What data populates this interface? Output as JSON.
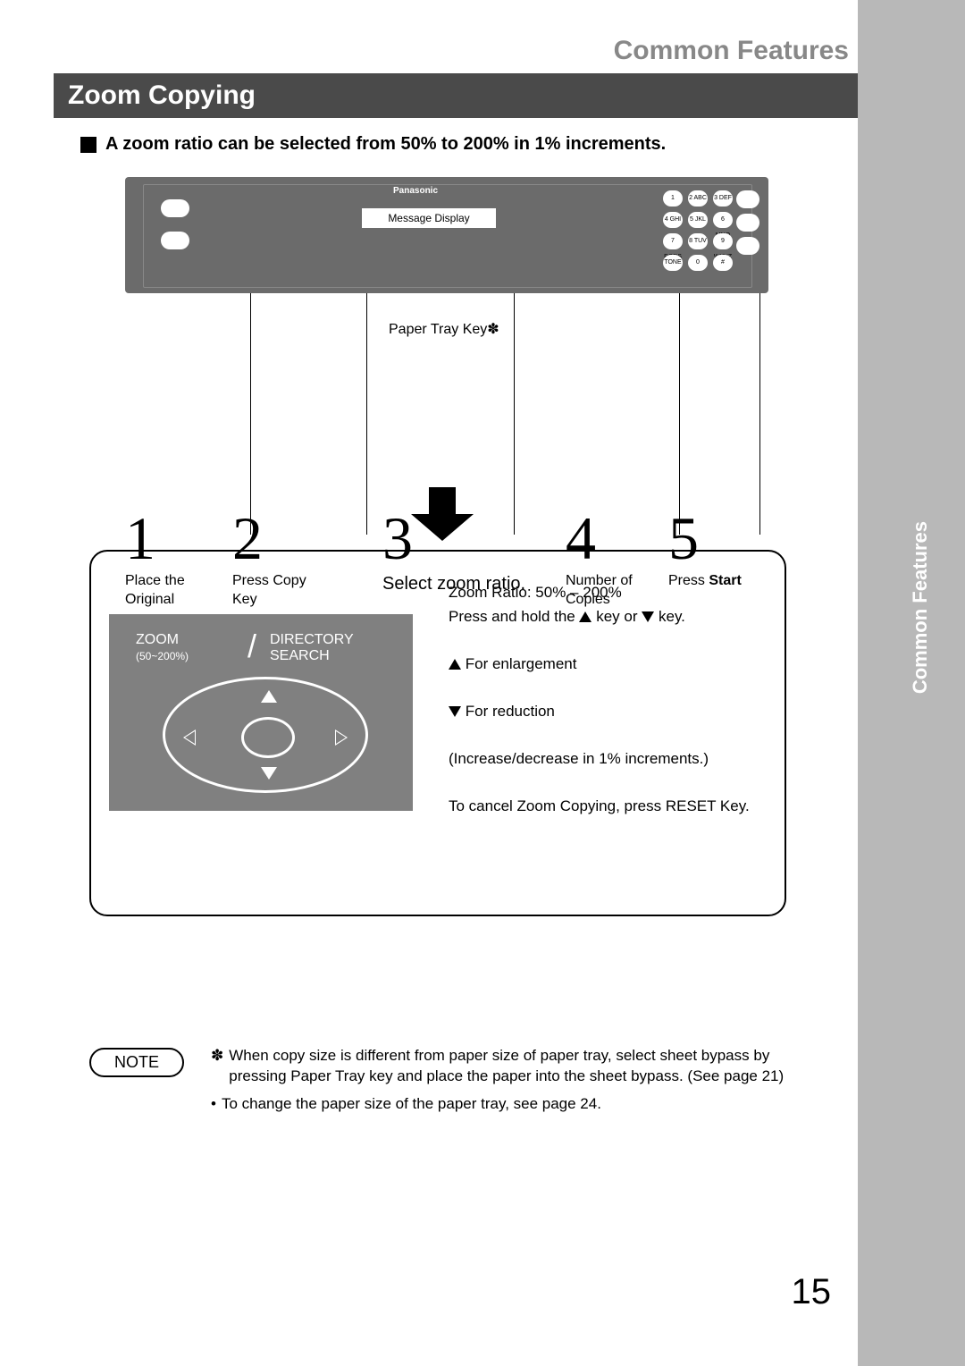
{
  "section": "Common Features",
  "title": "Zoom Copying",
  "intro": "A zoom ratio can be selected from 50% to 200% in 1% increments.",
  "panel": {
    "brand": "Panasonic",
    "message_display": "Message Display",
    "keypad": [
      "1",
      "2 ABC",
      "3 DEF",
      "4 GHI",
      "5 JKL",
      "6 MNO",
      "7 PQRS",
      "8 TUV",
      "9 WXYZ",
      "TONE",
      "0",
      "#"
    ],
    "paper_tray_label": "Paper Tray Key✽"
  },
  "steps": [
    {
      "num": "1",
      "label": "Place the\nOriginal"
    },
    {
      "num": "2",
      "label": "Press Copy\nKey"
    },
    {
      "num": "3",
      "label": "Select zoom ratio."
    },
    {
      "num": "4",
      "label": "Number of\nCopies"
    },
    {
      "num": "5",
      "label_html": "Press <b>Start</b>"
    }
  ],
  "detail": {
    "zoom_label": "ZOOM",
    "zoom_range": "(50~200%)",
    "dir_label": "DIRECTORY",
    "dir_sub": "SEARCH",
    "lines": {
      "ratio": "Zoom Ratio: 50% – 200%",
      "press_hold_pre": "Press and hold the ",
      "press_hold_mid": " key or ",
      "press_hold_post": " key.",
      "enlarge": "For enlargement",
      "reduce": "For reduction",
      "increment": "(Increase/decrease in 1% increments.)",
      "cancel": "To cancel Zoom Copying, press RESET Key."
    }
  },
  "note": {
    "label": "NOTE",
    "items": [
      {
        "bullet": "✽",
        "text": "When copy size is different from paper size of paper tray, select sheet bypass by pressing Paper Tray key and place the paper into the sheet bypass. (See page 21)"
      },
      {
        "bullet": "•",
        "text": "To change the paper size of the paper tray, see page 24."
      }
    ]
  },
  "page_number": "15",
  "colors": {
    "sidebar": "#b8b8b8",
    "titlebar": "#4a4a4a",
    "panel": "#6b6b6b",
    "detail_left": "#808080"
  }
}
